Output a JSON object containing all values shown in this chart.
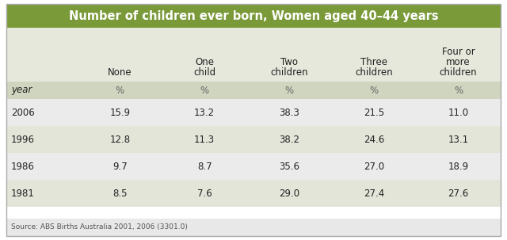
{
  "title": "Number of children ever born, Women aged 40–44 years",
  "title_bg": "#7a9a3a",
  "title_color": "#ffffff",
  "rows": [
    [
      "2006",
      "15.9",
      "13.2",
      "38.3",
      "21.5",
      "11.0"
    ],
    [
      "1996",
      "12.8",
      "11.3",
      "38.2",
      "24.6",
      "13.1"
    ],
    [
      "1986",
      "9.7",
      "8.7",
      "35.6",
      "27.0",
      "18.9"
    ],
    [
      "1981",
      "8.5",
      "7.6",
      "29.0",
      "27.4",
      "27.6"
    ]
  ],
  "source": "Source: ABS Births Australia 2001, 2006 (3301.0)",
  "title_fontsize": 10.5,
  "data_fontsize": 8.5,
  "header_bg": "#e6e8dc",
  "subhdr_bg": "#cfd5be",
  "row_bg_even": "#ebebeb",
  "row_bg_odd": "#e2e5d8",
  "source_bg": "#e8e8e8",
  "border_color": "#aaaaaa",
  "text_color": "#222222",
  "pct_color": "#666666"
}
